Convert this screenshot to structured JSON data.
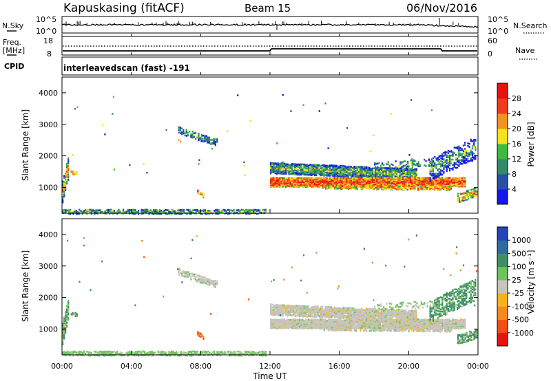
{
  "header": {
    "station": "Kapuskasing (fitACF)",
    "beam": "Beam 15",
    "date": "06/Nov/2016"
  },
  "noise_panel": {
    "left_label": "N.Sky",
    "right_label": "N.Search",
    "left_ticks": [
      "10^5",
      "10^0"
    ],
    "right_ticks": [
      "10^5",
      "10^0"
    ]
  },
  "freq_panel": {
    "left_label_line1": "Freq.",
    "left_label_line2": "[MHz]",
    "right_label": "Nave",
    "left_ticks": [
      "18",
      "8"
    ],
    "right_ticks": [
      "60",
      "0"
    ]
  },
  "cpid_panel": {
    "label": "CPID",
    "text": "interleavedscan (fast) -191"
  },
  "chart_data": [
    {
      "type": "heatmap",
      "title": "",
      "xlabel": "Time UT",
      "ylabel": "Slant Range [km]",
      "x_ticks": [
        "00:00",
        "04:00",
        "08:00",
        "12:00",
        "16:00",
        "20:00",
        "00:00"
      ],
      "x_range_hours": [
        0,
        24
      ],
      "ylim": [
        180,
        4500
      ],
      "y_ticks": [
        1000,
        2000,
        3000,
        4000
      ],
      "colorbar": {
        "label": "Power [dB]",
        "range": [
          0,
          30
        ],
        "ticks": [
          "4",
          "8",
          "12",
          "16",
          "20",
          "24",
          "28"
        ],
        "colors": [
          "#1515ee",
          "#254fa8",
          "#318a6c",
          "#3dbb3d",
          "#f4e21a",
          "#f29320",
          "#f23a1c",
          "#e8130f"
        ]
      }
    },
    {
      "type": "heatmap",
      "title": "",
      "xlabel": "Time UT",
      "ylabel": "Slant Range [km]",
      "x_ticks": [
        "00:00",
        "04:00",
        "08:00",
        "12:00",
        "16:00",
        "20:00",
        "00:00"
      ],
      "x_range_hours": [
        0,
        24
      ],
      "ylim": [
        180,
        4500
      ],
      "y_ticks": [
        1000,
        2000,
        3000,
        4000
      ],
      "colorbar": {
        "label": "Velocity [m s⁻¹]",
        "range": [
          -1500,
          1500
        ],
        "ticks": [
          "1000",
          "500",
          "100",
          "25",
          "-25",
          "-100",
          "-500",
          "-1000"
        ],
        "colors": [
          "#2345bb",
          "#2e6c9f",
          "#3f8f62",
          "#6cc45a",
          "#c6c4bc",
          "#f7b31e",
          "#f58a1d",
          "#f24e17",
          "#e8130f"
        ]
      }
    }
  ]
}
